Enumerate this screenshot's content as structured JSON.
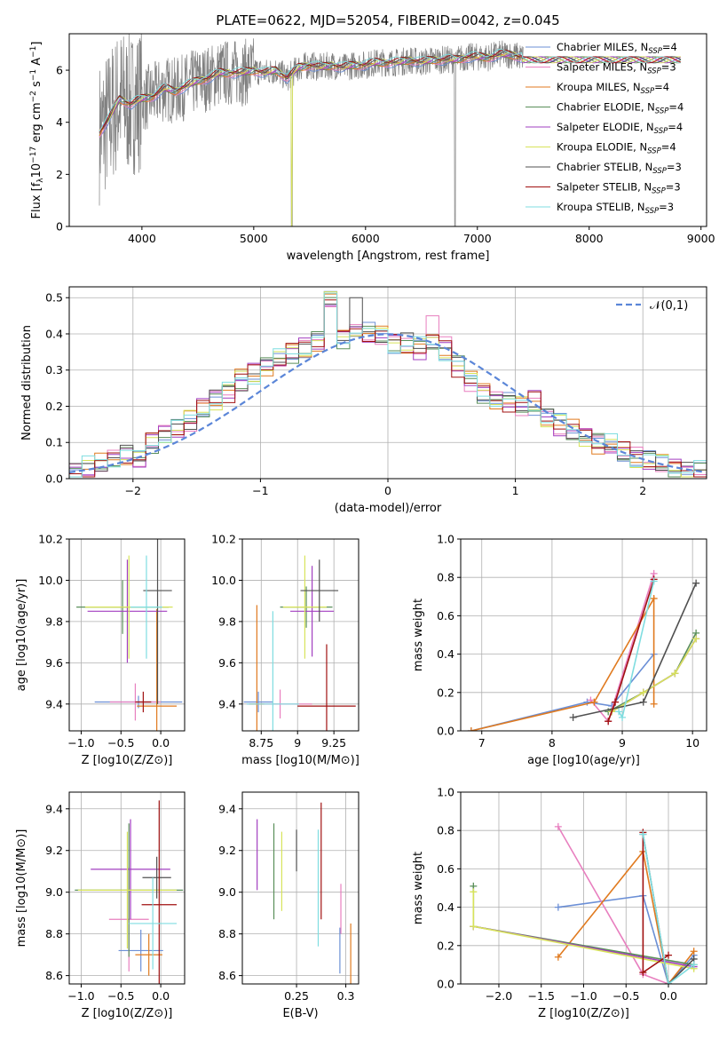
{
  "figure_title": "PLATE=0622, MJD=52054, FIBERID=0042, z=0.045",
  "colors": [
    "#6b8fd6",
    "#e87fbf",
    "#e07a1f",
    "#5a8f5a",
    "#a23fc0",
    "#d7e35a",
    "#505050",
    "#a01010",
    "#7fdde0"
  ],
  "chart_data": [
    {
      "id": "spectrum",
      "type": "line",
      "xlabel": "wavelength [Angstrom, rest frame]",
      "ylabel": "Flux [f_λ 10^-17 erg cm^-2 s^-1 A^-1]",
      "xlim": [
        3350,
        9050
      ],
      "ylim": [
        0,
        7.4
      ],
      "xticks": [
        4000,
        5000,
        6000,
        7000,
        8000,
        9000
      ],
      "yticks": [
        0,
        2,
        4,
        6
      ],
      "legend_placement": "upper-right",
      "series": [
        {
          "name": "Chabrier MILES, N_SSP=4"
        },
        {
          "name": "Salpeter MILES, N_SSP=3"
        },
        {
          "name": "Kroupa MILES, N_SSP=4"
        },
        {
          "name": "Chabrier ELODIE, N_SSP=4"
        },
        {
          "name": "Salpeter ELODIE, N_SSP=4"
        },
        {
          "name": "Kroupa ELODIE, N_SSP=4"
        },
        {
          "name": "Chabrier STELIB, N_SSP=3"
        },
        {
          "name": "Salpeter STELIB, N_SSP=3"
        },
        {
          "name": "Kroupa STELIB, N_SSP=3"
        }
      ],
      "model_x": [
        3620,
        3700,
        3800,
        3900,
        4000,
        4100,
        4200,
        4300,
        4400,
        4500,
        4600,
        4700,
        4800,
        4900,
        5000,
        5100,
        5200,
        5300,
        5400,
        5500,
        5600,
        5700,
        5800,
        5900,
        6000,
        6100,
        6200,
        6300,
        6400,
        6500,
        6600,
        6700,
        6800,
        6900,
        7000,
        7100,
        7200,
        7300,
        7400
      ],
      "model_y": [
        3.6,
        4.1,
        4.9,
        4.7,
        4.9,
        5.0,
        5.3,
        5.2,
        5.4,
        5.6,
        5.7,
        5.9,
        5.9,
        5.9,
        6.0,
        5.9,
        6.0,
        5.7,
        6.1,
        6.2,
        6.1,
        6.2,
        6.1,
        6.2,
        6.2,
        6.3,
        6.3,
        6.3,
        6.4,
        6.3,
        6.4,
        6.4,
        6.4,
        6.5,
        6.5,
        6.5,
        6.6,
        6.6,
        6.5
      ],
      "data_x_range": [
        3620,
        8820
      ],
      "data_grey_x_range": [
        3620,
        7410
      ]
    },
    {
      "id": "residual-histogram",
      "type": "histogram",
      "xlabel": "(data-model)/error",
      "ylabel": "Normed distribution",
      "xlim": [
        -2.5,
        2.5
      ],
      "ylim": [
        0,
        0.53
      ],
      "xticks": [
        -2,
        -1,
        0,
        1,
        2
      ],
      "yticks": [
        0.0,
        0.1,
        0.2,
        0.3,
        0.4,
        0.5
      ],
      "bin_width": 0.1,
      "legend": "𝒩(0,1)",
      "legend_placement": "upper-right",
      "reference_curve": "normal(0,1)",
      "bins_x": [
        -2.45,
        -2.35,
        -2.25,
        -2.15,
        -2.05,
        -1.95,
        -1.85,
        -1.75,
        -1.65,
        -1.55,
        -1.45,
        -1.35,
        -1.25,
        -1.15,
        -1.05,
        -0.95,
        -0.85,
        -0.75,
        -0.65,
        -0.55,
        -0.45,
        -0.35,
        -0.25,
        -0.15,
        -0.05,
        0.05,
        0.15,
        0.25,
        0.35,
        0.45,
        0.55,
        0.65,
        0.75,
        0.85,
        0.95,
        1.05,
        1.15,
        1.25,
        1.35,
        1.45,
        1.55,
        1.65,
        1.75,
        1.85,
        1.95,
        2.05,
        2.15,
        2.25,
        2.35,
        2.45
      ],
      "counts": [
        0.02,
        0.03,
        0.04,
        0.05,
        0.07,
        0.06,
        0.1,
        0.12,
        0.14,
        0.16,
        0.19,
        0.22,
        0.24,
        0.27,
        0.29,
        0.31,
        0.33,
        0.35,
        0.36,
        0.38,
        0.5,
        0.39,
        0.41,
        0.4,
        0.4,
        0.38,
        0.37,
        0.36,
        0.38,
        0.36,
        0.31,
        0.27,
        0.24,
        0.22,
        0.21,
        0.2,
        0.21,
        0.17,
        0.15,
        0.13,
        0.12,
        0.1,
        0.09,
        0.07,
        0.06,
        0.05,
        0.04,
        0.03,
        0.02,
        0.02
      ]
    },
    {
      "id": "age-vs-Z",
      "type": "errorbar",
      "xlabel": "Z [log10(Z/Z⊙)]",
      "ylabel": "age [log10(age/yr)]",
      "xlim": [
        -1.15,
        0.3
      ],
      "ylim": [
        9.27,
        10.2
      ],
      "xticks": [
        -1.0,
        -0.5,
        0.0
      ],
      "xtick_labels": [
        "−1.0",
        "−0.5",
        "0.0"
      ],
      "yticks": [
        9.4,
        9.6,
        9.8,
        10.0,
        10.2
      ],
      "points": [
        {
          "x": -0.28,
          "y": 9.41,
          "xerr": 0.55,
          "yerr": 0.03
        },
        {
          "x": -0.32,
          "y": 9.41,
          "xerr": 0.32,
          "yerr": 0.09
        },
        {
          "x": -0.05,
          "y": 9.39,
          "xerr": 0.25,
          "yerr": 0.47
        },
        {
          "x": -0.48,
          "y": 9.87,
          "xerr": 0.58,
          "yerr": 0.13
        },
        {
          "x": -0.42,
          "y": 9.85,
          "xerr": 0.5,
          "yerr": 0.25
        },
        {
          "x": -0.4,
          "y": 9.87,
          "xerr": 0.55,
          "yerr": 0.25
        },
        {
          "x": -0.04,
          "y": 9.95,
          "xerr": 0.18,
          "yerr": 0.55
        },
        {
          "x": -0.22,
          "y": 9.41,
          "xerr": 0.1,
          "yerr": 0.05
        },
        {
          "x": -0.18,
          "y": 9.87,
          "xerr": 0.2,
          "yerr": 0.25
        }
      ]
    },
    {
      "id": "age-vs-mass",
      "type": "errorbar",
      "xlabel": "mass [log10(M/M⊙)]",
      "ylabel": "",
      "xlim": [
        8.62,
        9.42
      ],
      "ylim": [
        9.27,
        10.2
      ],
      "xticks": [
        8.75,
        9.0,
        9.25
      ],
      "yticks": [
        9.4,
        9.6,
        9.8,
        10.0,
        10.2
      ],
      "points": [
        {
          "x": 8.73,
          "y": 9.41,
          "xerr": 0.1,
          "yerr": 0.05
        },
        {
          "x": 8.88,
          "y": 9.4,
          "xerr": 0.22,
          "yerr": 0.07
        },
        {
          "x": 8.72,
          "y": 9.4,
          "xerr": 0.05,
          "yerr": 0.48
        },
        {
          "x": 9.06,
          "y": 9.87,
          "xerr": 0.18,
          "yerr": 0.1
        },
        {
          "x": 9.1,
          "y": 9.85,
          "xerr": 0.15,
          "yerr": 0.22
        },
        {
          "x": 9.05,
          "y": 9.87,
          "xerr": 0.15,
          "yerr": 0.25
        },
        {
          "x": 9.15,
          "y": 9.95,
          "xerr": 0.13,
          "yerr": 0.15
        },
        {
          "x": 9.2,
          "y": 9.39,
          "xerr": 0.2,
          "yerr": 0.3
        },
        {
          "x": 8.83,
          "y": 9.4,
          "xerr": 0.18,
          "yerr": 0.45
        }
      ]
    },
    {
      "id": "mass-weight-vs-age",
      "type": "line",
      "xlabel": "age [log10(age/yr)]",
      "ylabel": "mass weight",
      "xlim": [
        6.7,
        10.2
      ],
      "ylim": [
        0.0,
        1.0
      ],
      "xticks": [
        7,
        8,
        9,
        10
      ],
      "yticks": [
        0.0,
        0.2,
        0.4,
        0.6,
        0.8,
        1.0
      ],
      "series": [
        {
          "x": [
            6.85,
            8.5,
            8.85,
            9.45
          ],
          "y": [
            0.0,
            0.15,
            0.13,
            0.4
          ]
        },
        {
          "x": [
            8.55,
            8.8,
            9.45
          ],
          "y": [
            0.16,
            0.05,
            0.82
          ]
        },
        {
          "x": [
            6.85,
            8.6,
            9.45,
            9.45
          ],
          "y": [
            0.0,
            0.15,
            0.69,
            0.14
          ]
        },
        {
          "x": [
            8.8,
            9.3,
            9.75,
            10.05
          ],
          "y": [
            0.1,
            0.2,
            0.3,
            0.51
          ]
        },
        {
          "x": [
            8.85,
            9.3,
            9.75,
            10.05
          ],
          "y": [
            0.1,
            0.2,
            0.3,
            0.48
          ]
        },
        {
          "x": [
            8.85,
            9.3,
            9.75,
            10.05
          ],
          "y": [
            0.1,
            0.2,
            0.3,
            0.48
          ]
        },
        {
          "x": [
            8.3,
            9.3,
            10.05
          ],
          "y": [
            0.07,
            0.15,
            0.77
          ]
        },
        {
          "x": [
            8.8,
            8.9,
            9.45
          ],
          "y": [
            0.05,
            0.15,
            0.79
          ]
        },
        {
          "x": [
            8.95,
            9.0,
            9.45
          ],
          "y": [
            0.1,
            0.07,
            0.78
          ]
        }
      ]
    },
    {
      "id": "mass-vs-Z",
      "type": "errorbar",
      "xlabel": "Z [log10(Z/Z⊙)]",
      "ylabel": "mass [log10(M/M⊙)]",
      "xlim": [
        -1.15,
        0.3
      ],
      "ylim": [
        8.56,
        9.48
      ],
      "xticks": [
        -1.0,
        -0.5,
        0.0
      ],
      "xtick_labels": [
        "−1.0",
        "−0.5",
        "0.0"
      ],
      "yticks": [
        8.6,
        8.8,
        9.0,
        9.2,
        9.4
      ],
      "points": [
        {
          "x": -0.25,
          "y": 8.72,
          "xerr": 0.28,
          "yerr": 0.1
        },
        {
          "x": -0.4,
          "y": 8.87,
          "xerr": 0.25,
          "yerr": 0.25
        },
        {
          "x": -0.15,
          "y": 8.7,
          "xerr": 0.17,
          "yerr": 0.1
        },
        {
          "x": -0.4,
          "y": 9.01,
          "xerr": 0.68,
          "yerr": 0.32
        },
        {
          "x": -0.38,
          "y": 9.11,
          "xerr": 0.5,
          "yerr": 0.24
        },
        {
          "x": -0.42,
          "y": 9.01,
          "xerr": 0.62,
          "yerr": 0.28
        },
        {
          "x": -0.05,
          "y": 9.07,
          "xerr": 0.18,
          "yerr": 0.1
        },
        {
          "x": -0.02,
          "y": 8.94,
          "xerr": 0.22,
          "yerr": 0.5
        },
        {
          "x": -0.1,
          "y": 8.85,
          "xerr": 0.3,
          "yerr": 0.22
        }
      ]
    },
    {
      "id": "mass-vs-EBV",
      "type": "errorbar",
      "xlabel": "E(B-V)",
      "ylabel": "",
      "xlim": [
        0.195,
        0.313
      ],
      "ylim": [
        8.56,
        9.48
      ],
      "xticks": [
        0.25,
        0.3
      ],
      "yticks": [
        8.6,
        8.8,
        9.0,
        9.2,
        9.4
      ],
      "points": [
        {
          "x": 0.294,
          "y": 8.72,
          "yerr": 0.11
        },
        {
          "x": 0.295,
          "y": 8.92,
          "yerr": 0.12
        },
        {
          "x": 0.305,
          "y": 8.7,
          "yerr": 0.15
        },
        {
          "x": 0.227,
          "y": 9.1,
          "yerr": 0.23
        },
        {
          "x": 0.21,
          "y": 9.18,
          "yerr": 0.17
        },
        {
          "x": 0.235,
          "y": 9.1,
          "yerr": 0.19
        },
        {
          "x": 0.25,
          "y": 9.2,
          "yerr": 0.1
        },
        {
          "x": 0.275,
          "y": 9.15,
          "yerr": 0.28
        },
        {
          "x": 0.272,
          "y": 9.02,
          "yerr": 0.28
        }
      ]
    },
    {
      "id": "mass-weight-vs-Z",
      "type": "line",
      "xlabel": "Z [log10(Z/Z⊙)]",
      "ylabel": "mass weight",
      "xlim": [
        -2.45,
        0.45
      ],
      "ylim": [
        0.0,
        1.0
      ],
      "xticks": [
        -2.0,
        -1.5,
        -1.0,
        -0.5,
        0.0
      ],
      "xtick_labels": [
        "−2.0",
        "−1.5",
        "−1.0",
        "−0.5",
        "0.0"
      ],
      "yticks": [
        0.0,
        0.2,
        0.4,
        0.6,
        0.8,
        1.0
      ],
      "series": [
        {
          "x": [
            -1.3,
            -0.3,
            0.0,
            0.3
          ],
          "y": [
            0.4,
            0.46,
            0.0,
            0.15
          ]
        },
        {
          "x": [
            -1.3,
            -0.3,
            0.0
          ],
          "y": [
            0.82,
            0.05,
            0.0
          ]
        },
        {
          "x": [
            -1.3,
            -0.3,
            0.0,
            0.3
          ],
          "y": [
            0.14,
            0.69,
            0.0,
            0.17
          ]
        },
        {
          "x": [
            -2.3,
            -2.3,
            0.3
          ],
          "y": [
            0.51,
            0.3,
            0.1
          ]
        },
        {
          "x": [
            -2.3,
            0.3
          ],
          "y": [
            0.3,
            0.09
          ]
        },
        {
          "x": [
            -2.3,
            -2.3,
            0.3
          ],
          "y": [
            0.48,
            0.3,
            0.08
          ]
        },
        {
          "x": [
            -0.3,
            0.0,
            0.3
          ],
          "y": [
            0.78,
            0.0,
            0.13
          ]
        },
        {
          "x": [
            -0.3,
            -0.3,
            0.0
          ],
          "y": [
            0.79,
            0.06,
            0.15
          ]
        },
        {
          "x": [
            -0.3,
            0.0,
            0.3
          ],
          "y": [
            0.78,
            0.0,
            0.1
          ]
        }
      ]
    }
  ]
}
